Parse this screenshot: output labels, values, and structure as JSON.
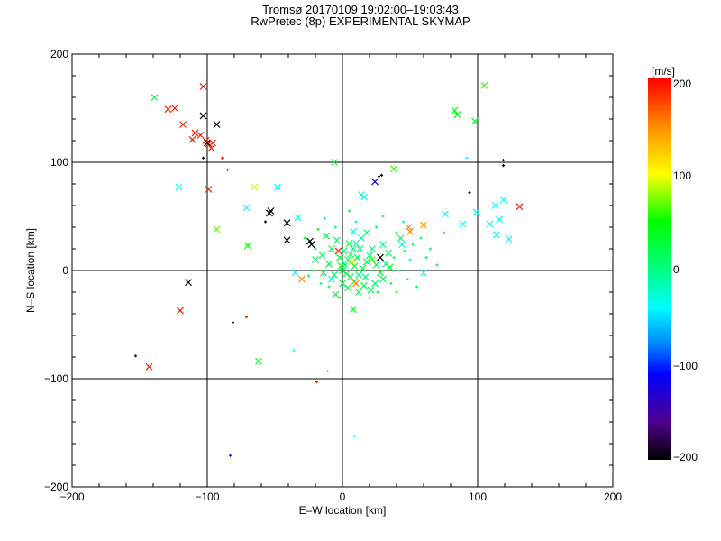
{
  "chart_data": {
    "type": "scatter",
    "title": "Tromsø 20170109 19:02:00–19:03:43",
    "subtitle": "RwPretec (8p) EXPERIMENTAL SKYMAP",
    "xlabel": "E–W location [km]",
    "ylabel": "N–S location [km]",
    "xlim": [
      -200,
      200
    ],
    "ylim": [
      -200,
      200
    ],
    "xticks": [
      "−200",
      "−100",
      "0",
      "100",
      "200"
    ],
    "yticks": [
      "−200",
      "−100",
      "0",
      "100",
      "200"
    ],
    "grid": true,
    "colorbar": {
      "label": "[m/s]",
      "range": [
        -200,
        200
      ],
      "ticks": [
        "200",
        "100",
        "0",
        "−100",
        "−200"
      ],
      "stops": [
        [
          200,
          "#ff0000"
        ],
        [
          150,
          "#ff8c00"
        ],
        [
          100,
          "#ffff00"
        ],
        [
          50,
          "#00ff00"
        ],
        [
          0,
          "#00ff80"
        ],
        [
          -40,
          "#00ffff"
        ],
        [
          -80,
          "#0080ff"
        ],
        [
          -110,
          "#0000ff"
        ],
        [
          -160,
          "#500090"
        ],
        [
          -200,
          "#000000"
        ]
      ]
    },
    "point_format": [
      "x_km",
      "y_km",
      "velocity_m_s",
      "marker (1=cross, 0=dot)"
    ],
    "points": [
      [
        -139,
        160,
        30,
        1
      ],
      [
        -103,
        170,
        190,
        1
      ],
      [
        -129,
        149,
        190,
        1
      ],
      [
        -124,
        150,
        190,
        1
      ],
      [
        -118,
        135,
        190,
        1
      ],
      [
        -103,
        143,
        -200,
        1
      ],
      [
        -93,
        135,
        -200,
        1
      ],
      [
        -109,
        127,
        190,
        1
      ],
      [
        -105,
        125,
        190,
        1
      ],
      [
        -101,
        120,
        190,
        1
      ],
      [
        -99,
        117,
        190,
        1
      ],
      [
        -111,
        121,
        190,
        1
      ],
      [
        -100,
        118,
        -200,
        1
      ],
      [
        -96,
        118,
        190,
        1
      ],
      [
        -97,
        113,
        190,
        1
      ],
      [
        -89,
        104,
        190,
        0
      ],
      [
        -85,
        93,
        190,
        0
      ],
      [
        -103,
        104,
        -200,
        0
      ],
      [
        -121,
        77,
        -40,
        1
      ],
      [
        -99,
        75,
        190,
        1
      ],
      [
        -65,
        77,
        90,
        1
      ],
      [
        -48,
        77,
        -40,
        1
      ],
      [
        -93,
        38,
        70,
        1
      ],
      [
        -71,
        58,
        -40,
        1
      ],
      [
        -70,
        23,
        50,
        1
      ],
      [
        -53,
        55,
        -200,
        1
      ],
      [
        -54,
        53,
        -200,
        1
      ],
      [
        -41,
        44,
        -200,
        1
      ],
      [
        -41,
        28,
        -200,
        1
      ],
      [
        -24,
        27,
        -200,
        1
      ],
      [
        -23,
        24,
        -200,
        1
      ],
      [
        -33,
        49,
        -40,
        1
      ],
      [
        -57,
        45,
        -200,
        0
      ],
      [
        -114,
        -11,
        -200,
        1
      ],
      [
        -120,
        -37,
        190,
        1
      ],
      [
        -81,
        -48,
        -200,
        0
      ],
      [
        -71,
        -43,
        190,
        0
      ],
      [
        -62,
        -84,
        30,
        1
      ],
      [
        -153,
        -79,
        -200,
        0
      ],
      [
        -143,
        -89,
        190,
        1
      ],
      [
        -36,
        -74,
        -40,
        0
      ],
      [
        -11,
        -93,
        -30,
        0
      ],
      [
        -19,
        -103,
        190,
        0
      ],
      [
        -83,
        -171,
        -110,
        0
      ],
      [
        9,
        -153,
        -40,
        0
      ],
      [
        -6,
        100,
        30,
        1
      ],
      [
        8,
        -36,
        40,
        1
      ],
      [
        24,
        82,
        -110,
        1
      ],
      [
        27,
        87,
        -200,
        0
      ],
      [
        29,
        88,
        -200,
        0
      ],
      [
        38,
        94,
        60,
        1
      ],
      [
        14,
        70,
        -20,
        1
      ],
      [
        16,
        68,
        -40,
        1
      ],
      [
        83,
        148,
        40,
        1
      ],
      [
        85,
        144,
        40,
        1
      ],
      [
        98,
        138,
        40,
        1
      ],
      [
        105,
        171,
        60,
        1
      ],
      [
        119,
        102,
        -200,
        0
      ],
      [
        119,
        97,
        -200,
        0
      ],
      [
        92,
        104,
        -40,
        0
      ],
      [
        94,
        72,
        -200,
        0
      ],
      [
        113,
        60,
        -40,
        1
      ],
      [
        119,
        65,
        -40,
        1
      ],
      [
        131,
        59,
        190,
        1
      ],
      [
        123,
        29,
        -40,
        1
      ],
      [
        114,
        33,
        -40,
        1
      ],
      [
        99,
        54,
        -40,
        1
      ],
      [
        89,
        43,
        -40,
        1
      ],
      [
        109,
        43,
        -40,
        1
      ],
      [
        116,
        47,
        -40,
        1
      ],
      [
        60,
        42,
        140,
        1
      ],
      [
        50,
        36,
        150,
        1
      ],
      [
        49,
        40,
        150,
        1
      ],
      [
        76,
        52,
        -40,
        1
      ],
      [
        28,
        12,
        -200,
        1
      ],
      [
        43,
        30,
        10,
        1
      ],
      [
        60,
        -2,
        -40,
        1
      ],
      [
        -30,
        -8,
        150,
        1
      ],
      [
        -35,
        -2,
        -40,
        1
      ],
      [
        -5,
        -22,
        30,
        1
      ],
      [
        30,
        -8,
        20,
        1
      ],
      [
        -20,
        10,
        20,
        1
      ],
      [
        -18,
        38,
        40,
        0
      ],
      [
        -13,
        48,
        -20,
        0
      ],
      [
        5,
        55,
        20,
        0
      ],
      [
        30,
        50,
        10,
        0
      ],
      [
        45,
        45,
        0,
        0
      ],
      [
        -28,
        30,
        30,
        0
      ],
      [
        65,
        20,
        10,
        0
      ],
      [
        70,
        5,
        40,
        0
      ],
      [
        55,
        -15,
        20,
        0
      ],
      [
        -10,
        -15,
        30,
        0
      ],
      [
        20,
        -25,
        0,
        0
      ],
      [
        40,
        -20,
        30,
        0
      ],
      [
        -25,
        -5,
        10,
        0
      ],
      [
        75,
        35,
        -10,
        0
      ],
      [
        0,
        0,
        20,
        1
      ],
      [
        2,
        5,
        10,
        1
      ],
      [
        4,
        10,
        0,
        1
      ],
      [
        6,
        15,
        20,
        1
      ],
      [
        8,
        20,
        10,
        1
      ],
      [
        10,
        25,
        -20,
        1
      ],
      [
        -2,
        12,
        20,
        1
      ],
      [
        3,
        -3,
        30,
        1
      ],
      [
        6,
        -6,
        20,
        1
      ],
      [
        9,
        -10,
        10,
        1
      ],
      [
        12,
        -4,
        0,
        1
      ],
      [
        15,
        2,
        20,
        1
      ],
      [
        18,
        8,
        30,
        1
      ],
      [
        20,
        14,
        10,
        1
      ],
      [
        22,
        20,
        0,
        1
      ],
      [
        25,
        5,
        20,
        1
      ],
      [
        28,
        -2,
        30,
        1
      ],
      [
        14,
        30,
        -20,
        1
      ],
      [
        -4,
        28,
        10,
        1
      ],
      [
        -8,
        20,
        30,
        1
      ],
      [
        -10,
        6,
        20,
        1
      ],
      [
        -6,
        -4,
        10,
        1
      ],
      [
        0,
        -12,
        20,
        1
      ],
      [
        4,
        -16,
        30,
        1
      ],
      [
        16,
        -14,
        20,
        1
      ],
      [
        24,
        -12,
        10,
        1
      ],
      [
        32,
        6,
        0,
        1
      ],
      [
        34,
        16,
        20,
        1
      ],
      [
        30,
        24,
        -10,
        1
      ],
      [
        18,
        35,
        10,
        1
      ],
      [
        8,
        36,
        -30,
        1
      ],
      [
        -12,
        32,
        20,
        1
      ],
      [
        -15,
        14,
        10,
        1
      ],
      [
        -14,
        -2,
        30,
        1
      ],
      [
        1,
        18,
        0,
        1
      ],
      [
        11,
        12,
        20,
        1
      ],
      [
        13,
        20,
        10,
        1
      ],
      [
        5,
        25,
        30,
        1
      ],
      [
        -1,
        4,
        40,
        1
      ],
      [
        9,
        4,
        20,
        1
      ],
      [
        17,
        -6,
        0,
        1
      ],
      [
        21,
        -18,
        20,
        1
      ],
      [
        12,
        -20,
        30,
        1
      ],
      [
        38,
        12,
        20,
        0
      ],
      [
        42,
        0,
        10,
        0
      ],
      [
        46,
        18,
        30,
        0
      ],
      [
        36,
        -12,
        20,
        0
      ],
      [
        50,
        10,
        0,
        0
      ],
      [
        52,
        24,
        20,
        0
      ],
      [
        -20,
        20,
        30,
        0
      ],
      [
        -22,
        0,
        20,
        0
      ],
      [
        -5,
        40,
        10,
        0
      ],
      [
        10,
        45,
        0,
        0
      ],
      [
        25,
        40,
        20,
        0
      ],
      [
        40,
        35,
        30,
        0
      ],
      [
        58,
        30,
        10,
        0
      ],
      [
        62,
        12,
        20,
        0
      ],
      [
        48,
        -8,
        0,
        0
      ],
      [
        26,
        -20,
        30,
        0
      ],
      [
        -2,
        -25,
        20,
        0
      ],
      [
        -16,
        -12,
        10,
        0
      ],
      [
        7,
        8,
        90,
        1
      ],
      [
        -3,
        18,
        190,
        1
      ],
      [
        10,
        -12,
        150,
        1
      ],
      [
        22,
        10,
        60,
        1
      ],
      [
        35,
        3,
        30,
        1
      ],
      [
        44,
        24,
        -30,
        1
      ],
      [
        -8,
        -8,
        -30,
        1
      ]
    ]
  }
}
